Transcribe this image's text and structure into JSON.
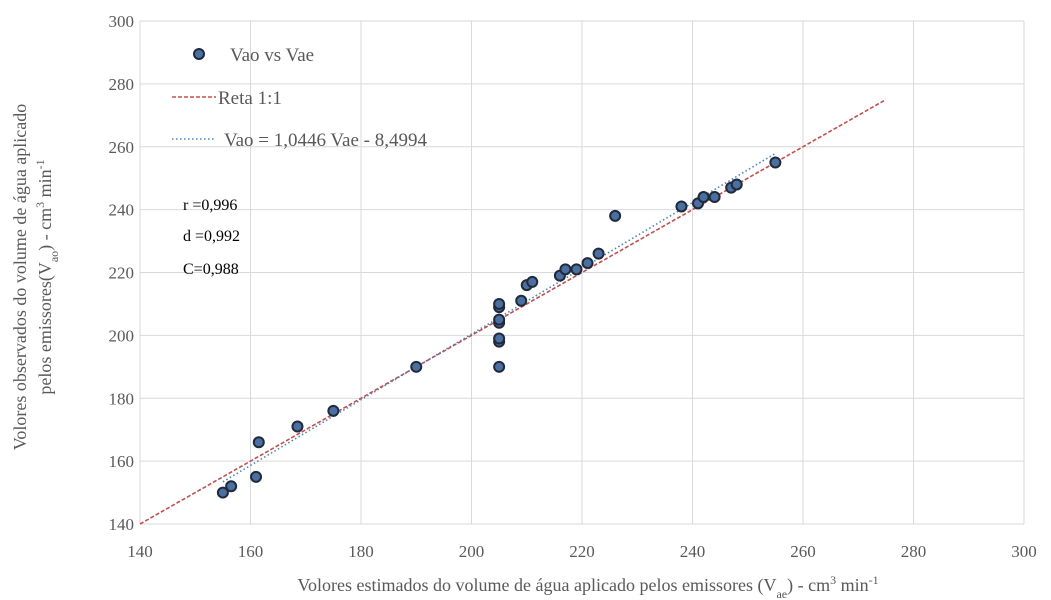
{
  "chart_data": {
    "type": "scatter",
    "title": "",
    "xlabel": {
      "main": "Volores estimados do volume de água aplicado pelos emissores (V",
      "sub": "ae",
      "tail": ") - cm",
      "sup1": "3",
      "tail2": " min",
      "sup2": "-1"
    },
    "ylabel": {
      "line1": "Volores observados do volume de água aplicado",
      "line2_main": "pelos emissores(V",
      "line2_sub": "ao",
      "line2_tail": ") - cm",
      "line2_sup1": "3",
      "line2_tail2": " min",
      "line2_sup2": "-1"
    },
    "xlim": [
      140,
      300
    ],
    "ylim": [
      140,
      300
    ],
    "xticks": [
      "140",
      "160",
      "180",
      "200",
      "220",
      "240",
      "260",
      "280",
      "300"
    ],
    "yticks": [
      "140",
      "160",
      "180",
      "200",
      "220",
      "240",
      "260",
      "280",
      "300"
    ],
    "grid": true,
    "legend_position": "top-left",
    "series": [
      {
        "name": "Vao vs Vae",
        "kind": "scatter",
        "color": "#4a6fa0",
        "edge": "#1f2a3a",
        "points": [
          [
            155,
            150
          ],
          [
            156.5,
            152
          ],
          [
            161,
            155
          ],
          [
            161.5,
            166
          ],
          [
            168.5,
            171
          ],
          [
            175,
            176
          ],
          [
            190,
            190
          ],
          [
            205,
            190
          ],
          [
            205,
            198
          ],
          [
            205,
            199
          ],
          [
            205,
            204
          ],
          [
            205,
            205
          ],
          [
            205,
            209
          ],
          [
            205,
            210
          ],
          [
            209,
            211
          ],
          [
            210,
            216
          ],
          [
            211,
            217
          ],
          [
            216,
            219
          ],
          [
            217,
            221
          ],
          [
            219,
            221
          ],
          [
            221,
            223
          ],
          [
            223,
            226
          ],
          [
            226,
            238
          ],
          [
            238,
            241
          ],
          [
            241,
            242
          ],
          [
            242,
            244
          ],
          [
            244,
            244
          ],
          [
            247,
            247
          ],
          [
            248,
            248
          ],
          [
            255,
            255
          ]
        ]
      },
      {
        "name": "Reta 1:1",
        "kind": "line",
        "style": "dashed",
        "color": "#c0504d",
        "x": [
          140,
          275
        ],
        "y": [
          140,
          275
        ]
      },
      {
        "name": "Vao = 1,0446 Vae - 8,4994",
        "kind": "line",
        "style": "dotted",
        "color": "#4f81bd",
        "x": [
          155,
          255
        ],
        "y": [
          153.4136,
          257.8736
        ]
      }
    ],
    "annotations": [
      "r =0,996",
      "d =0,992",
      "C=0,988"
    ]
  }
}
